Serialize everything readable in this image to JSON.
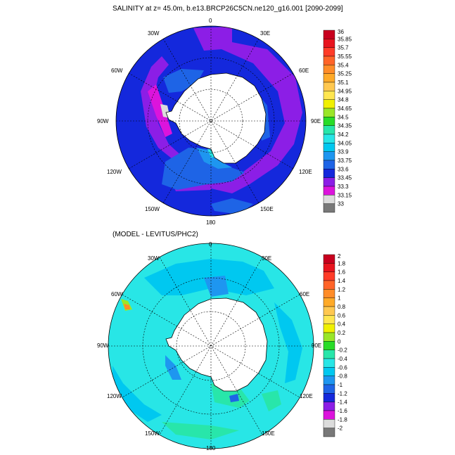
{
  "panels": [
    {
      "id": "top",
      "title": "SALINITY at z=  45.0m, b.e13.BRCP26C5CN.ne120_g16.001 [2090-2099]",
      "lon_labels": [
        "0",
        "30E",
        "60E",
        "90E",
        "120E",
        "150E",
        "180",
        "150W",
        "120W",
        "90W",
        "60W",
        "30W"
      ],
      "colorbar": {
        "levels": [
          "36",
          "35.85",
          "35.7",
          "35.55",
          "35.4",
          "35.25",
          "35.1",
          "34.95",
          "34.8",
          "34.65",
          "34.5",
          "34.35",
          "34.2",
          "34.05",
          "33.9",
          "33.75",
          "33.6",
          "33.45",
          "33.3",
          "33.15",
          "33"
        ],
        "colors": [
          "#c8001e",
          "#e8141e",
          "#ff3c28",
          "#ff6428",
          "#ff8c28",
          "#ffaa28",
          "#ffc850",
          "#ffe650",
          "#f0f000",
          "#9ae628",
          "#28dc28",
          "#28e6aa",
          "#28e6e6",
          "#00c8f0",
          "#1e96f0",
          "#1e64e6",
          "#1428dc",
          "#8c1ee6",
          "#dc14dc",
          "#dcdcdc",
          "#787878"
        ]
      }
    },
    {
      "id": "bottom",
      "title": "(MODEL - LEVITUS/PHC2)",
      "lon_labels": [
        "0",
        "30E",
        "60E",
        "90E",
        "120E",
        "150E",
        "180",
        "150W",
        "120W",
        "90W",
        "60W",
        "30W"
      ],
      "colorbar": {
        "levels": [
          "2",
          "1.8",
          "1.6",
          "1.4",
          "1.2",
          "1",
          "0.8",
          "0.6",
          "0.4",
          "0.2",
          "0",
          "-0.2",
          "-0.4",
          "-0.6",
          "-0.8",
          "-1",
          "-1.2",
          "-1.4",
          "-1.6",
          "-1.8",
          "-2"
        ],
        "colors": [
          "#c8001e",
          "#e8141e",
          "#ff3c28",
          "#ff6428",
          "#ff8c28",
          "#ffaa28",
          "#ffc850",
          "#ffe650",
          "#f0f000",
          "#9ae628",
          "#28dc28",
          "#28e6aa",
          "#28e6e6",
          "#00c8f0",
          "#1e96f0",
          "#1e64e6",
          "#1428dc",
          "#8c1ee6",
          "#dc14dc",
          "#dcdcdc",
          "#787878"
        ]
      }
    }
  ],
  "fields": {
    "top_ocean": "#1428dc",
    "top_belt": "#8c1ee6",
    "top_magenta": "#dc14dc",
    "top_light": "#1e64e6",
    "top_shelf": "#1e96f0",
    "top_cyan": "#28e6e6",
    "top_green": "#28dc28",
    "top_grey": "#dcdcdc",
    "bot_ocean": "#28e6e6",
    "bot_mid": "#00c8f0",
    "bot_light": "#28e6aa",
    "bot_deep": "#1e96f0",
    "bot_blue": "#1e64e6",
    "land": "#ffffff"
  }
}
